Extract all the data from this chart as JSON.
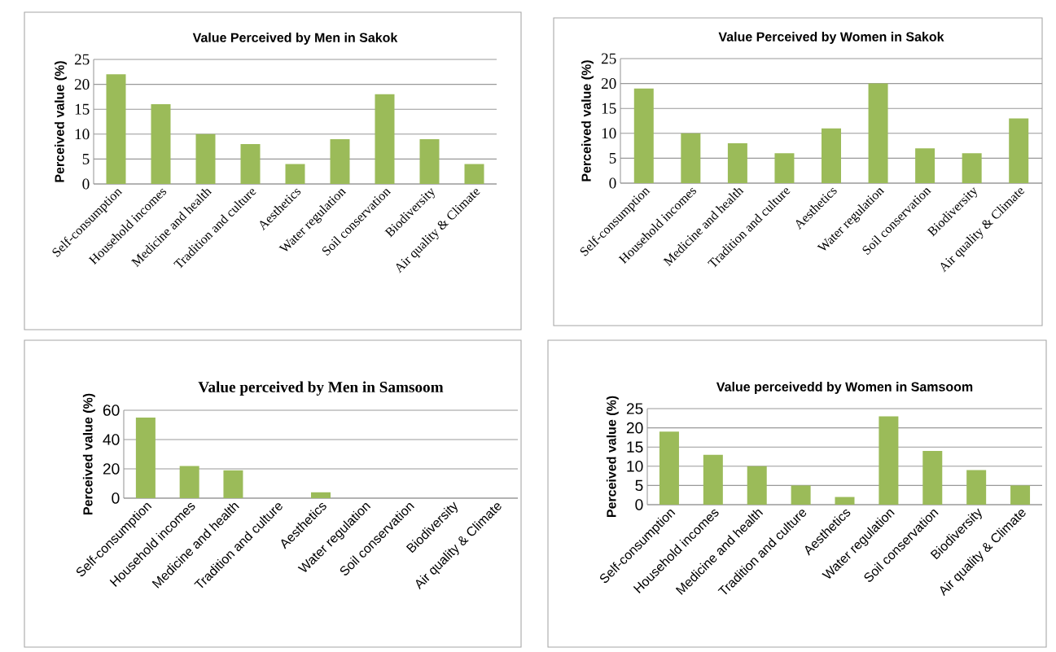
{
  "chart_data": [
    {
      "type": "bar",
      "title": "Value Perceived by Men in Sakok",
      "ylabel": "Perceived value (%)",
      "categories": [
        "Self-consumption",
        "Household incomes",
        "Medicine and health",
        "Tradition and culture",
        "Aesthetics",
        "Water regulation",
        "Soil conservation",
        "Biodiversity",
        "Air quality & Climate"
      ],
      "values": [
        22,
        16,
        10,
        8,
        4,
        9,
        18,
        9,
        4
      ],
      "color": "#9bbb59",
      "ylim": [
        0,
        25
      ],
      "yticks": [
        0,
        5,
        10,
        15,
        20,
        25
      ],
      "grid": "y"
    },
    {
      "type": "bar",
      "title": "Value Perceived by Women in Sakok",
      "ylabel": "Perceived value (%)",
      "categories": [
        "Self-consumption",
        "Household incomes",
        "Medicine and health",
        "Tradition and culture",
        "Aesthetics",
        "Water regulation",
        "Soil conservation",
        "Biodiversity",
        "Air quality & Climate"
      ],
      "values": [
        19,
        10,
        8,
        6,
        11,
        20,
        7,
        6,
        13
      ],
      "color": "#9bbb59",
      "ylim": [
        0,
        25
      ],
      "yticks": [
        0,
        5,
        10,
        15,
        20,
        25
      ],
      "grid": "y"
    },
    {
      "type": "bar",
      "title": "Value perceived by Men in Samsoom",
      "ylabel": "Perceived value (%)",
      "categories": [
        "Self-consumption",
        "Household incomes",
        "Medicine and health",
        "Tradition and culture",
        "Aesthetics",
        "Water regulation",
        "Soil conservation",
        "Biodiversity",
        "Air quality & Climate"
      ],
      "values": [
        55,
        22,
        19,
        0,
        4,
        0,
        0,
        0,
        0
      ],
      "color": "#9bbb59",
      "ylim": [
        0,
        60
      ],
      "yticks": [
        0,
        20,
        40,
        60
      ],
      "grid": "y"
    },
    {
      "type": "bar",
      "title": "Value perceivedd by Women in Samsoom",
      "ylabel": "Perceived value (%)",
      "categories": [
        "Self-consumption",
        "Household incomes",
        "Medicine and health",
        "Tradition and culture",
        "Aesthetics",
        "Water regulation",
        "Soil conservation",
        "Biodiversity",
        "Air quality & Climate"
      ],
      "values": [
        19,
        13,
        10,
        5,
        2,
        23,
        14,
        9,
        5
      ],
      "color": "#9bbb59",
      "ylim": [
        0,
        25
      ],
      "yticks": [
        0,
        5,
        10,
        15,
        20,
        25
      ],
      "grid": "y"
    }
  ]
}
